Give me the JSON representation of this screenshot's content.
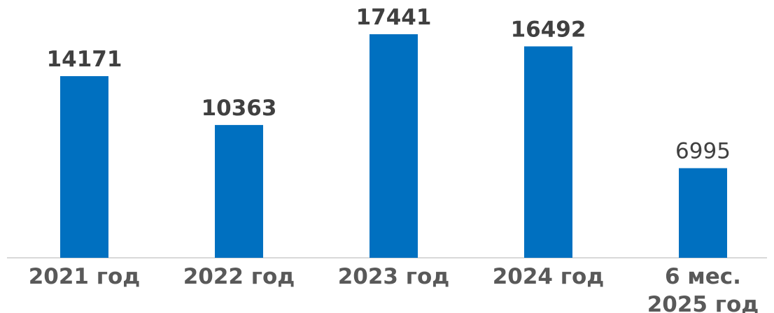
{
  "chart_data": {
    "type": "bar",
    "categories": [
      [
        "2021 год"
      ],
      [
        "2022 год"
      ],
      [
        "2023 год"
      ],
      [
        "2024 год"
      ],
      [
        "6 мес.",
        "2025 год"
      ]
    ],
    "values": [
      14171,
      10363,
      17441,
      16492,
      6995
    ],
    "data_labels": [
      "14171",
      "10363",
      "17441",
      "16492",
      "6995"
    ],
    "data_label_bold": [
      true,
      true,
      true,
      true,
      false
    ],
    "ylim": [
      0,
      17441
    ],
    "grid": false,
    "legend": "none",
    "title": "",
    "xlabel": "",
    "ylabel": "",
    "colors": {
      "bar": "#0070C0",
      "label": "#404040",
      "tick": "#595959",
      "axis": "#d9d9d9"
    }
  }
}
